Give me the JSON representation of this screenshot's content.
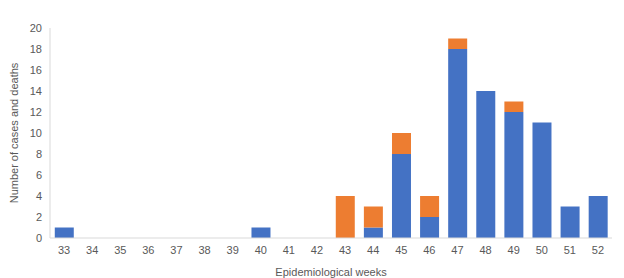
{
  "chart_data": {
    "type": "bar",
    "stacked": true,
    "grid": false,
    "x_label": "Epidemiological weeks",
    "y_label": "Number of cases and deaths",
    "categories": [
      33,
      34,
      35,
      36,
      37,
      38,
      39,
      40,
      41,
      42,
      43,
      44,
      45,
      46,
      47,
      48,
      49,
      50,
      51,
      52
    ],
    "ylim": [
      0,
      20
    ],
    "yticks": [
      0,
      2,
      4,
      6,
      8,
      10,
      12,
      14,
      16,
      18,
      20
    ],
    "series": [
      {
        "color": "#4472c4",
        "values": [
          1,
          0,
          0,
          0,
          0,
          0,
          0,
          1,
          0,
          0,
          0,
          1,
          8,
          2,
          18,
          14,
          12,
          11,
          3,
          4
        ]
      },
      {
        "color": "#ed7d31",
        "values": [
          0,
          0,
          0,
          0,
          0,
          0,
          0,
          0,
          0,
          0,
          4,
          2,
          2,
          2,
          1,
          0,
          1,
          0,
          0,
          0
        ]
      }
    ]
  }
}
